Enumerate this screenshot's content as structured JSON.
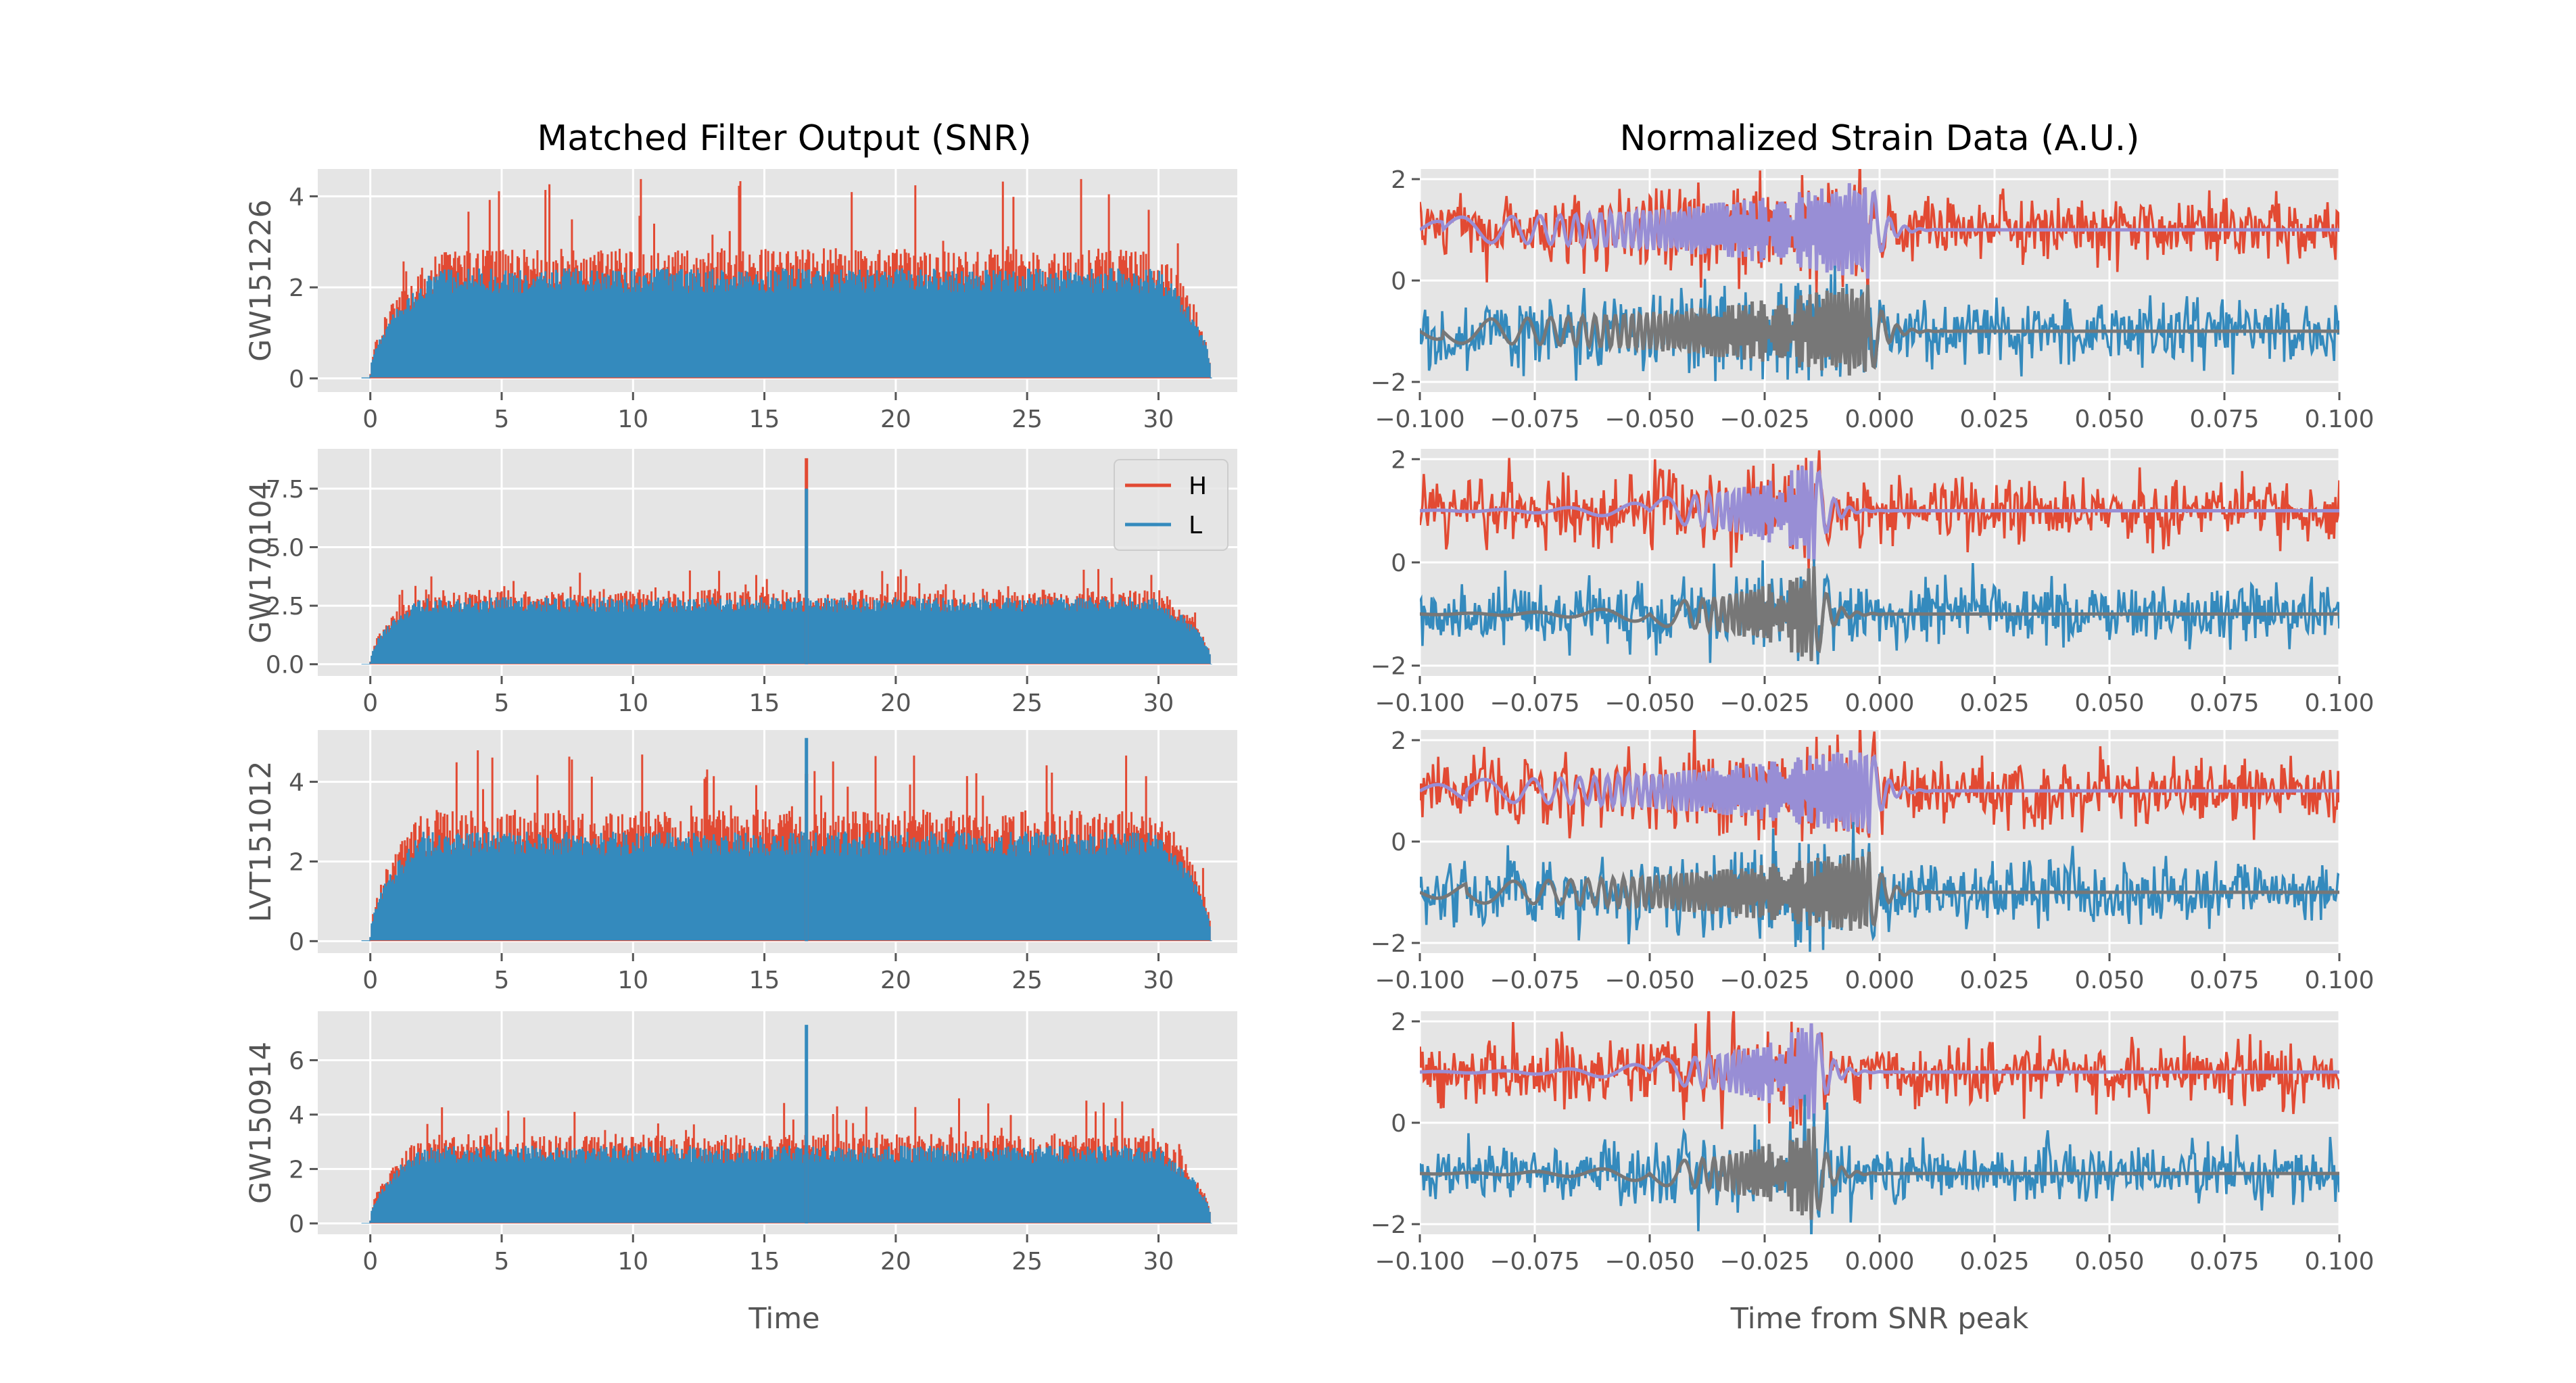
{
  "figure": {
    "left_title": "Matched Filter Output (SNR)",
    "right_title": "Normalized Strain Data (A.U.)",
    "left_xlabel": "Time",
    "right_xlabel": "Time from SNR peak"
  },
  "colors": {
    "H": "#E24A33",
    "L": "#348ABD",
    "H_template": "#988ED5",
    "L_template": "#777777",
    "axes_bg": "#E5E5E5",
    "grid": "#FFFFFF"
  },
  "legend": {
    "position": "upper-right",
    "entries": [
      "H",
      "L"
    ]
  },
  "chart_data": [
    {
      "type": "line",
      "event": "GW151226",
      "column": "snr",
      "xlim": [
        -2,
        33
      ],
      "ylim": [
        -0.3,
        4.6
      ],
      "xticks": [
        0,
        5,
        10,
        15,
        20,
        25,
        30
      ],
      "yticks": [
        0,
        2,
        4
      ],
      "ytick_labels": [
        "0",
        "2",
        "4"
      ],
      "ramp_up": [
        0.0,
        2.5
      ],
      "ramp_down": [
        30.0,
        32.0
      ],
      "H_typical": 2.6,
      "H_peak": 4.5,
      "L_typical": 2.2,
      "peaks": [],
      "series": [
        {
          "name": "H",
          "color_key": "H"
        },
        {
          "name": "L",
          "color_key": "L"
        }
      ]
    },
    {
      "type": "line",
      "event": "GW151226",
      "column": "strain",
      "xlim": [
        -0.1,
        0.1
      ],
      "ylim": [
        -2.2,
        2.2
      ],
      "xticks": [
        -0.1,
        -0.075,
        -0.05,
        -0.025,
        0.0,
        0.025,
        0.05,
        0.075,
        0.1
      ],
      "xtick_labels": [
        "−0.100",
        "−0.075",
        "−0.050",
        "−0.025",
        "0.000",
        "0.025",
        "0.050",
        "0.075",
        "0.100"
      ],
      "yticks": [
        -2,
        0,
        2
      ],
      "ytick_labels": [
        "−2",
        "0",
        "2"
      ],
      "H_offset": 1.0,
      "L_offset": -1.0,
      "noise": 0.3,
      "chirp_start": -0.095,
      "chirp_end": -0.002,
      "chirp_amp": 1.0,
      "series": [
        {
          "name": "H",
          "color_key": "H"
        },
        {
          "name": "L",
          "color_key": "L"
        },
        {
          "name": "H template",
          "color_key": "H_template"
        },
        {
          "name": "L template",
          "color_key": "L_template"
        }
      ]
    },
    {
      "type": "line",
      "event": "GW170104",
      "column": "snr",
      "xlim": [
        -2,
        33
      ],
      "ylim": [
        -0.5,
        9.2
      ],
      "xticks": [
        0,
        5,
        10,
        15,
        20,
        25,
        30
      ],
      "yticks": [
        0,
        2.5,
        5,
        7.5
      ],
      "ytick_labels": [
        "0.0",
        "2.5",
        "5.0",
        "7.5"
      ],
      "ramp_up": [
        0.0,
        2.0
      ],
      "ramp_down": [
        30.0,
        32.0
      ],
      "H_typical": 2.9,
      "H_peak": 4.1,
      "L_typical": 2.6,
      "peaks": [
        {
          "x": 16.6,
          "H": 8.8,
          "L": 7.5
        }
      ],
      "series": [
        {
          "name": "H",
          "color_key": "H"
        },
        {
          "name": "L",
          "color_key": "L"
        }
      ]
    },
    {
      "type": "line",
      "event": "GW170104",
      "column": "strain",
      "xlim": [
        -0.1,
        0.1
      ],
      "ylim": [
        -2.2,
        2.2
      ],
      "xticks": [
        -0.1,
        -0.075,
        -0.05,
        -0.025,
        0.0,
        0.025,
        0.05,
        0.075,
        0.1
      ],
      "xtick_labels": [
        "−0.100",
        "−0.075",
        "−0.050",
        "−0.025",
        "0.000",
        "0.025",
        "0.050",
        "0.075",
        "0.100"
      ],
      "yticks": [
        -2,
        0,
        2
      ],
      "ytick_labels": [
        "−2",
        "0",
        "2"
      ],
      "H_offset": 1.0,
      "L_offset": -1.0,
      "noise": 0.3,
      "chirp_start": -0.05,
      "chirp_end": -0.014,
      "chirp_amp": 1.0,
      "series": [
        {
          "name": "H",
          "color_key": "H"
        },
        {
          "name": "L",
          "color_key": "L"
        },
        {
          "name": "H template",
          "color_key": "H_template"
        },
        {
          "name": "L template",
          "color_key": "L_template"
        }
      ]
    },
    {
      "type": "line",
      "event": "LVT151012",
      "column": "snr",
      "xlim": [
        -2,
        33
      ],
      "ylim": [
        -0.3,
        5.3
      ],
      "xticks": [
        0,
        5,
        10,
        15,
        20,
        25,
        30
      ],
      "yticks": [
        0,
        2,
        4
      ],
      "ytick_labels": [
        "0",
        "2",
        "4"
      ],
      "ramp_up": [
        0.0,
        2.0
      ],
      "ramp_down": [
        30.0,
        32.0
      ],
      "H_typical": 3.0,
      "H_peak": 4.9,
      "L_typical": 2.5,
      "peaks": [
        {
          "x": 16.6,
          "H": 4.2,
          "L": 5.1
        }
      ],
      "series": [
        {
          "name": "H",
          "color_key": "H"
        },
        {
          "name": "L",
          "color_key": "L"
        }
      ]
    },
    {
      "type": "line",
      "event": "LVT151012",
      "column": "strain",
      "xlim": [
        -0.1,
        0.1
      ],
      "ylim": [
        -2.2,
        2.2
      ],
      "xticks": [
        -0.1,
        -0.075,
        -0.05,
        -0.025,
        0.0,
        0.025,
        0.05,
        0.075,
        0.1
      ],
      "xtick_labels": [
        "−0.100",
        "−0.075",
        "−0.050",
        "−0.025",
        "0.000",
        "0.025",
        "0.050",
        "0.075",
        "0.100"
      ],
      "yticks": [
        -2,
        0,
        2
      ],
      "ytick_labels": [
        "−2",
        "0",
        "2"
      ],
      "H_offset": 1.0,
      "L_offset": -1.0,
      "noise": 0.3,
      "chirp_start": -0.09,
      "chirp_end": -0.002,
      "chirp_amp": 0.9,
      "series": [
        {
          "name": "H",
          "color_key": "H"
        },
        {
          "name": "L",
          "color_key": "L"
        },
        {
          "name": "H template",
          "color_key": "H_template"
        },
        {
          "name": "L template",
          "color_key": "L_template"
        }
      ]
    },
    {
      "type": "line",
      "event": "GW150914",
      "column": "snr",
      "xlim": [
        -2,
        33
      ],
      "ylim": [
        -0.4,
        7.8
      ],
      "xticks": [
        0,
        5,
        10,
        15,
        20,
        25,
        30
      ],
      "yticks": [
        0,
        2,
        4,
        6
      ],
      "ytick_labels": [
        "0",
        "2",
        "4",
        "6"
      ],
      "ramp_up": [
        0.0,
        2.0
      ],
      "ramp_down": [
        30.0,
        32.0
      ],
      "H_typical": 3.0,
      "H_peak": 4.6,
      "L_typical": 2.6,
      "peaks": [
        {
          "x": 16.6,
          "H": 4.0,
          "L": 7.3
        }
      ],
      "series": [
        {
          "name": "H",
          "color_key": "H"
        },
        {
          "name": "L",
          "color_key": "L"
        }
      ]
    },
    {
      "type": "line",
      "event": "GW150914",
      "column": "strain",
      "xlim": [
        -0.1,
        0.1
      ],
      "ylim": [
        -2.2,
        2.2
      ],
      "xticks": [
        -0.1,
        -0.075,
        -0.05,
        -0.025,
        0.0,
        0.025,
        0.05,
        0.075,
        0.1
      ],
      "xtick_labels": [
        "−0.100",
        "−0.075",
        "−0.050",
        "−0.025",
        "0.000",
        "0.025",
        "0.050",
        "0.075",
        "0.100"
      ],
      "yticks": [
        -2,
        0,
        2
      ],
      "ytick_labels": [
        "−2",
        "0",
        "2"
      ],
      "H_offset": 1.0,
      "L_offset": -1.0,
      "noise": 0.3,
      "chirp_start": -0.05,
      "chirp_end": -0.014,
      "chirp_amp": 1.0,
      "series": [
        {
          "name": "H",
          "color_key": "H"
        },
        {
          "name": "L",
          "color_key": "L"
        },
        {
          "name": "H template",
          "color_key": "H_template"
        },
        {
          "name": "L template",
          "color_key": "L_template"
        }
      ]
    }
  ]
}
